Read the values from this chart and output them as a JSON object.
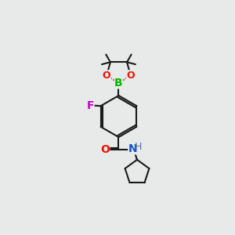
{
  "bg_color": "#e8eaea",
  "bond_color": "#1a1a1a",
  "bond_width": 1.5,
  "atom_colors": {
    "B": "#00bb00",
    "O": "#ee1100",
    "F": "#cc00cc",
    "N": "#1155cc",
    "C": "#1a1a1a",
    "O_carbonyl": "#ee1100"
  },
  "font_size_atom": 10,
  "font_size_methyl": 8.5
}
